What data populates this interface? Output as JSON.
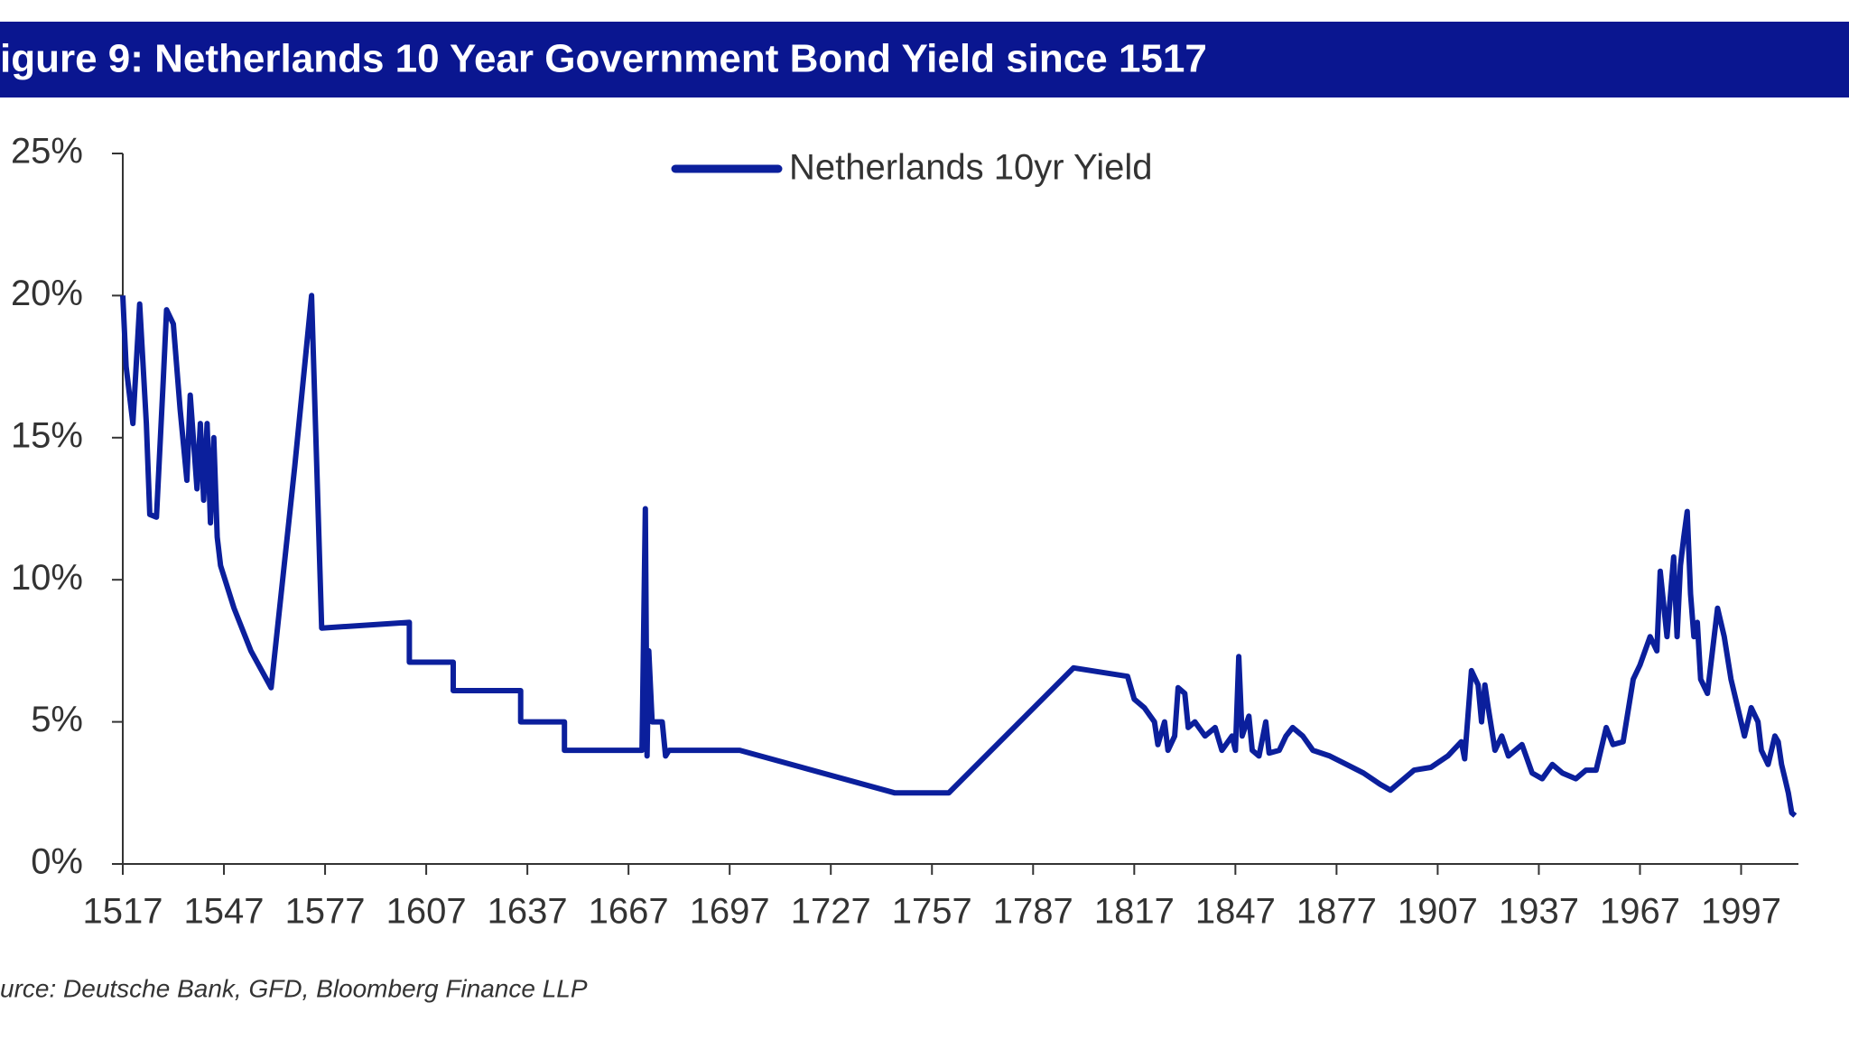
{
  "chart_data": {
    "type": "line",
    "title": "igure 9: Netherlands 10 Year Government Bond Yield since 1517",
    "source": "urce: Deutsche Bank, GFD, Bloomberg Finance LLP",
    "x": [
      1517,
      1518,
      1520,
      1522,
      1524,
      1525,
      1527,
      1529,
      1530,
      1532,
      1534,
      1536,
      1537,
      1539,
      1540,
      1541,
      1542,
      1543,
      1544,
      1545,
      1546,
      1550,
      1555,
      1561,
      1568,
      1573,
      1576,
      1602,
      1602,
      1615,
      1615,
      1635,
      1635,
      1648,
      1648,
      1671,
      1672,
      1672.5,
      1673,
      1674,
      1677,
      1678,
      1679,
      1700,
      1746,
      1762,
      1799,
      1815,
      1817,
      1820,
      1823,
      1824,
      1826,
      1827,
      1829,
      1830,
      1832,
      1833,
      1835,
      1838,
      1841,
      1843,
      1846,
      1847,
      1848,
      1849,
      1851,
      1852,
      1854,
      1856,
      1857,
      1860,
      1862,
      1864,
      1867,
      1870,
      1875,
      1880,
      1885,
      1890,
      1893,
      1897,
      1900,
      1905,
      1910,
      1914,
      1915,
      1917,
      1919,
      1920,
      1921,
      1922,
      1924,
      1926,
      1928,
      1932,
      1935,
      1938,
      1941,
      1944,
      1948,
      1951,
      1954,
      1957,
      1959,
      1962,
      1965,
      1967,
      1970,
      1972,
      1973,
      1975,
      1977,
      1978,
      1979,
      1980,
      1981,
      1982,
      1983,
      1984,
      1985,
      1987,
      1988,
      1990,
      1992,
      1994,
      1996,
      1998,
      2000,
      2002,
      2003,
      2005,
      2007,
      2008,
      2009,
      2010,
      2011,
      2012,
      2013
    ],
    "series": [
      {
        "name": "Netherlands 10yr Yield",
        "color": "#0b1f9c",
        "values": [
          20,
          17.5,
          15.5,
          19.7,
          15.5,
          12.3,
          12.2,
          17,
          19.5,
          19,
          16,
          13.5,
          16.5,
          13.2,
          15.5,
          12.8,
          15.5,
          12,
          15,
          11.5,
          10.5,
          9,
          7.5,
          6.2,
          14,
          20,
          8.3,
          8.5,
          7.1,
          7.1,
          6.1,
          6.1,
          5,
          5,
          4,
          4,
          12.5,
          3.8,
          7.5,
          5,
          5,
          3.8,
          4,
          4,
          2.5,
          2.5,
          6.9,
          6.6,
          5.8,
          5.5,
          5,
          4.2,
          5,
          4,
          4.5,
          6.2,
          6,
          4.8,
          5,
          4.5,
          4.8,
          4,
          4.5,
          4,
          7.3,
          4.5,
          5.2,
          4,
          3.8,
          5,
          3.9,
          4,
          4.5,
          4.8,
          4.5,
          4,
          3.8,
          3.5,
          3.2,
          2.8,
          2.6,
          3,
          3.3,
          3.4,
          3.8,
          4.3,
          3.7,
          6.8,
          6.3,
          5,
          6.3,
          5.5,
          4,
          4.5,
          3.8,
          4.2,
          3.2,
          3,
          3.5,
          3.2,
          3,
          3.3,
          3.3,
          4.8,
          4.2,
          4.3,
          6.5,
          7,
          8,
          7.5,
          10.3,
          8,
          10.8,
          8,
          10.5,
          11.5,
          12.4,
          9.5,
          8,
          8.5,
          6.5,
          6,
          7,
          9,
          8,
          6.5,
          5.5,
          4.5,
          5.5,
          5,
          4,
          3.5,
          4.5,
          4.3,
          3.5,
          3,
          2.5,
          1.8,
          1.7
        ]
      }
    ],
    "xlim": [
      1517,
      2014
    ],
    "xticks": [
      1517,
      1547,
      1577,
      1607,
      1637,
      1667,
      1697,
      1727,
      1757,
      1787,
      1817,
      1847,
      1877,
      1907,
      1937,
      1967,
      1997
    ],
    "ylim": [
      0,
      25
    ],
    "yticks": [
      {
        "value": 0,
        "label": "0%"
      },
      {
        "value": 5,
        "label": "5%"
      },
      {
        "value": 10,
        "label": "10%"
      },
      {
        "value": 15,
        "label": "15%"
      },
      {
        "value": 20,
        "label": "20%"
      },
      {
        "value": 25,
        "label": "25%"
      }
    ]
  }
}
